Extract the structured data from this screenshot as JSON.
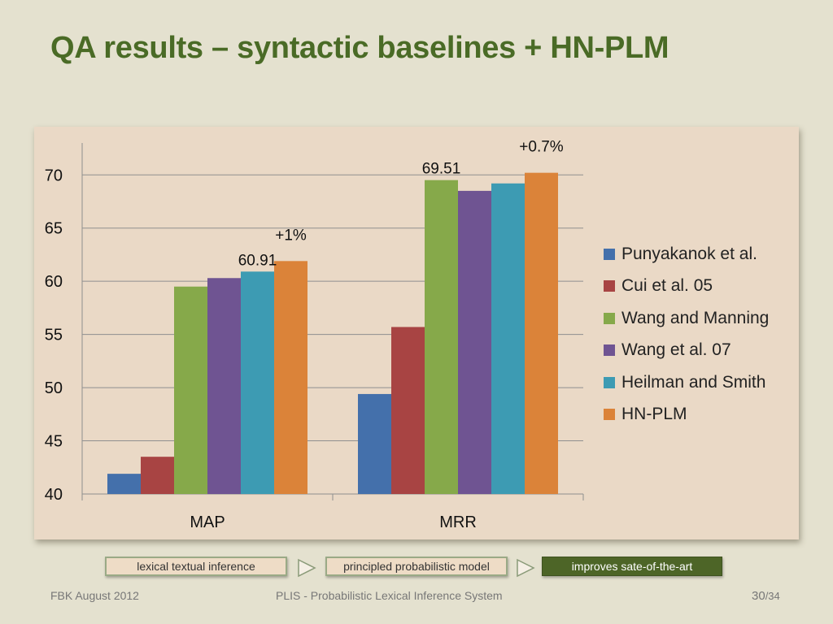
{
  "slide": {
    "title": "QA results – syntactic baselines + HN-PLM"
  },
  "chart_data": {
    "type": "bar",
    "categories": [
      "MAP",
      "MRR"
    ],
    "series": [
      {
        "name": "Punyakanok et al.",
        "color": "#4470ab",
        "values": [
          41.9,
          49.4
        ]
      },
      {
        "name": "Cui et al. 05",
        "color": "#a84443",
        "values": [
          43.5,
          55.7
        ]
      },
      {
        "name": "Wang and Manning",
        "color": "#86a94a",
        "values": [
          59.5,
          69.51
        ]
      },
      {
        "name": "Wang et al. 07",
        "color": "#6f5492",
        "values": [
          60.3,
          68.5
        ]
      },
      {
        "name": "Heilman and Smith",
        "color": "#3d9bb3",
        "values": [
          60.91,
          69.2
        ]
      },
      {
        "name": "HN-PLM",
        "color": "#db8339",
        "values": [
          61.9,
          70.2
        ]
      }
    ],
    "ylim": [
      40,
      73
    ],
    "yticks": [
      40,
      45,
      50,
      55,
      60,
      65,
      70
    ],
    "grid": true,
    "legend": "right",
    "annotations": [
      {
        "text": "60.91",
        "category": "MAP",
        "series": "Heilman and Smith"
      },
      {
        "text": "+1%",
        "category": "MAP",
        "series": "HN-PLM"
      },
      {
        "text": "69.51",
        "category": "MRR",
        "series": "Wang and Manning"
      },
      {
        "text": "+0.7%",
        "category": "MRR",
        "series": "HN-PLM"
      }
    ]
  },
  "flow": [
    {
      "label": "lexical textual inference",
      "style": "light"
    },
    {
      "label": "principled probabilistic model",
      "style": "light"
    },
    {
      "label": "improves sate-of-the-art",
      "style": "dark"
    }
  ],
  "footer": {
    "left": "FBK August 2012",
    "center": "PLIS - Probabilistic Lexical Inference System",
    "page": "30",
    "total": "/34"
  }
}
